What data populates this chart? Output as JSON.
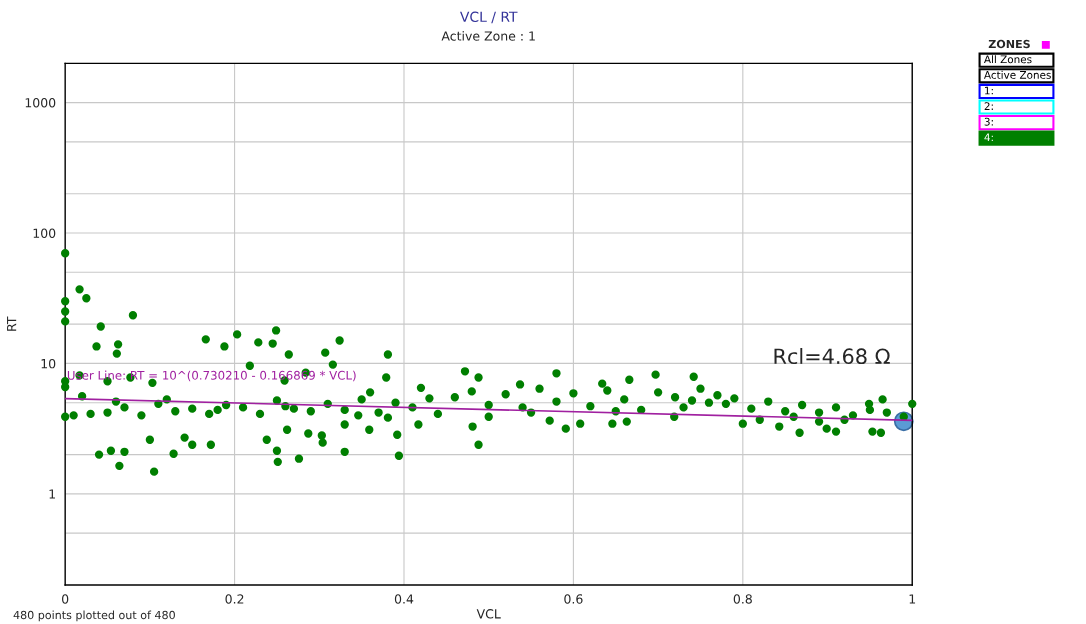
{
  "chart_data": {
    "type": "scatter",
    "title": "VCL / RT",
    "subtitle": "Active Zone : 1",
    "xlabel": "VCL",
    "ylabel": "RT",
    "xlim": [
      0,
      1
    ],
    "xticks": [
      0,
      0.2,
      0.4,
      0.6,
      0.8,
      1
    ],
    "ylim": [
      0.2,
      2000
    ],
    "yticks": [
      {
        "value": 0.5,
        "label": null
      },
      1,
      {
        "value": 2,
        "label": null
      },
      {
        "value": 5,
        "label": null
      },
      10,
      {
        "value": 20,
        "label": null
      },
      {
        "value": 50,
        "label": null
      },
      100,
      {
        "value": 200,
        "label": null
      },
      {
        "value": 500,
        "label": null
      },
      1000
    ],
    "log": "y",
    "grid": true,
    "series": [
      {
        "marker": "circle",
        "color": "#007f00",
        "x": [
          0,
          0,
          0,
          0,
          0,
          0,
          0,
          0.017,
          0.025,
          0.042,
          0.08,
          0.037,
          0.0625,
          0.061,
          0.017,
          0.05,
          0.077,
          0.103,
          0.166,
          0.203,
          0.188,
          0.228,
          0.249,
          0.245,
          0.324,
          0.307,
          0.381,
          0.218,
          0.316,
          0.264,
          0.284,
          0.379,
          0.259,
          0.04,
          0.054,
          0.07,
          0.064,
          0.105,
          0.128,
          0.172,
          0.15,
          0.141,
          0.1,
          0.238,
          0.25,
          0.251,
          0.276,
          0.262,
          0.287,
          0.303,
          0.304,
          0.33,
          0.33,
          0.359,
          0.392,
          0.394,
          0.417,
          0.346,
          0.381,
          0.01,
          0.03,
          0.05,
          0.07,
          0.09,
          0.11,
          0.13,
          0.15,
          0.17,
          0.19,
          0.21,
          0.23,
          0.25,
          0.27,
          0.29,
          0.31,
          0.33,
          0.35,
          0.37,
          0.39,
          0.41,
          0.43,
          0.02,
          0.06,
          0.12,
          0.18,
          0.26,
          0.36,
          0.42,
          0.44,
          0.472,
          0.488,
          0.58,
          0.697,
          0.742,
          0.488,
          0.634,
          0.666,
          0.537,
          0.965,
          0.949,
          0.953,
          0.963,
          0.867,
          0.899,
          0.91,
          0.8,
          1.0,
          0.481,
          0.591,
          0.572,
          0.646,
          0.663,
          0.608,
          0.719,
          0.82,
          0.843,
          0.89,
          0.46,
          0.48,
          0.5,
          0.52,
          0.54,
          0.56,
          0.58,
          0.6,
          0.62,
          0.64,
          0.66,
          0.68,
          0.7,
          0.72,
          0.74,
          0.75,
          0.76,
          0.77,
          0.78,
          0.79,
          0.81,
          0.83,
          0.85,
          0.87,
          0.89,
          0.91,
          0.93,
          0.95,
          0.97,
          0.99,
          0.5,
          0.55,
          0.65,
          0.73,
          0.86,
          0.92
        ],
        "values": [
          70,
          30,
          25,
          21,
          7.3,
          6.6,
          3.9,
          37,
          31.6,
          19.2,
          23.4,
          13.5,
          14,
          11.9,
          8.1,
          7.3,
          7.8,
          7.1,
          15.3,
          16.7,
          13.5,
          14.5,
          17.9,
          14.2,
          15,
          12.1,
          11.7,
          9.6,
          9.8,
          11.7,
          8.5,
          7.8,
          7.4,
          2,
          2.14,
          2.1,
          1.64,
          1.48,
          2.03,
          2.38,
          2.38,
          2.7,
          2.6,
          2.6,
          2.14,
          1.76,
          1.86,
          3.1,
          2.9,
          2.8,
          2.47,
          2.1,
          3.4,
          3.1,
          2.84,
          1.96,
          3.4,
          4,
          3.84,
          4,
          4.1,
          4.2,
          4.6,
          4,
          4.9,
          4.3,
          4.5,
          4.1,
          4.8,
          4.6,
          4.1,
          5.2,
          4.5,
          4.3,
          4.9,
          4.4,
          5.3,
          4.2,
          5,
          4.6,
          5.4,
          5.6,
          5.1,
          5.3,
          4.4,
          4.7,
          6,
          6.5,
          4.1,
          8.7,
          7.8,
          8.4,
          8.2,
          7.9,
          2.38,
          7,
          7.5,
          6.9,
          5.3,
          4.9,
          3,
          2.94,
          2.94,
          3.16,
          3,
          3.45,
          4.9,
          3.28,
          3.16,
          3.64,
          3.45,
          3.58,
          3.45,
          3.9,
          3.7,
          3.28,
          3.58,
          5.5,
          6.1,
          4.8,
          5.8,
          4.6,
          6.4,
          5.1,
          5.9,
          4.7,
          6.2,
          5.3,
          4.4,
          6,
          5.5,
          5.2,
          6.4,
          5,
          5.7,
          4.9,
          5.4,
          4.5,
          5.1,
          4.3,
          4.8,
          4.2,
          4.6,
          4,
          4.4,
          4.2,
          3.9,
          3.9,
          4.2,
          4.3,
          4.6,
          3.9,
          3.7
        ]
      },
      {
        "type": "line",
        "color": "#a020a0",
        "x": [
          0,
          1
        ],
        "values": [
          5.37,
          3.66
        ]
      },
      {
        "marker": "circle",
        "color": "#5b9bd5",
        "x": [
          0.99
        ],
        "values": [
          3.6
        ]
      }
    ],
    "annotations": [
      "User Line: RT = 10^(0.730210 - 0.166869 * VCL)",
      "Rcl=4.68 Ω",
      "480 points plotted out of 480",
      "ZONES",
      "All Zones",
      "Active Zones",
      "1:",
      "2:",
      "3:",
      "4:"
    ]
  }
}
